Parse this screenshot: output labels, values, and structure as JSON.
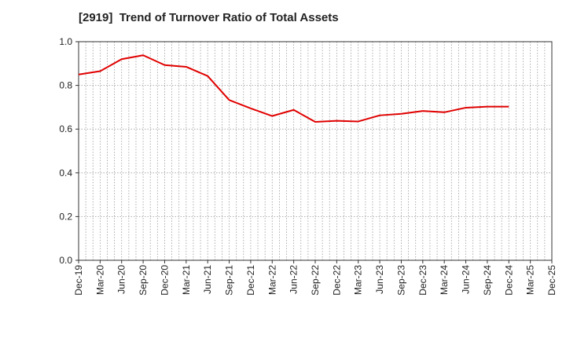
{
  "chart_data": {
    "type": "line",
    "title": "[2919]  Trend of Turnover Ratio of Total Assets",
    "xlabel": "",
    "ylabel": "",
    "ylim": [
      0,
      1.0
    ],
    "y_ticks": [
      "0.0",
      "0.2",
      "0.4",
      "0.6",
      "0.8",
      "1.0"
    ],
    "x_ticks": [
      "Dec-19",
      "Mar-20",
      "Jun-20",
      "Sep-20",
      "Dec-20",
      "Mar-21",
      "Jun-21",
      "Sep-21",
      "Dec-21",
      "Mar-22",
      "Jun-22",
      "Sep-22",
      "Dec-22",
      "Mar-23",
      "Jun-23",
      "Sep-23",
      "Dec-23",
      "Mar-24",
      "Jun-24",
      "Sep-24",
      "Dec-24",
      "Mar-25",
      "Dec-25"
    ],
    "grid": true,
    "line_color": "#e00000",
    "series": [
      {
        "values": [
          0.85,
          0.865,
          0.92,
          0.938,
          0.893,
          0.885,
          0.843,
          0.733,
          0.695,
          0.66,
          0.688,
          0.633,
          0.638,
          0.635,
          0.663,
          0.67,
          0.683,
          0.677,
          0.698,
          0.703,
          0.703
        ]
      }
    ]
  }
}
